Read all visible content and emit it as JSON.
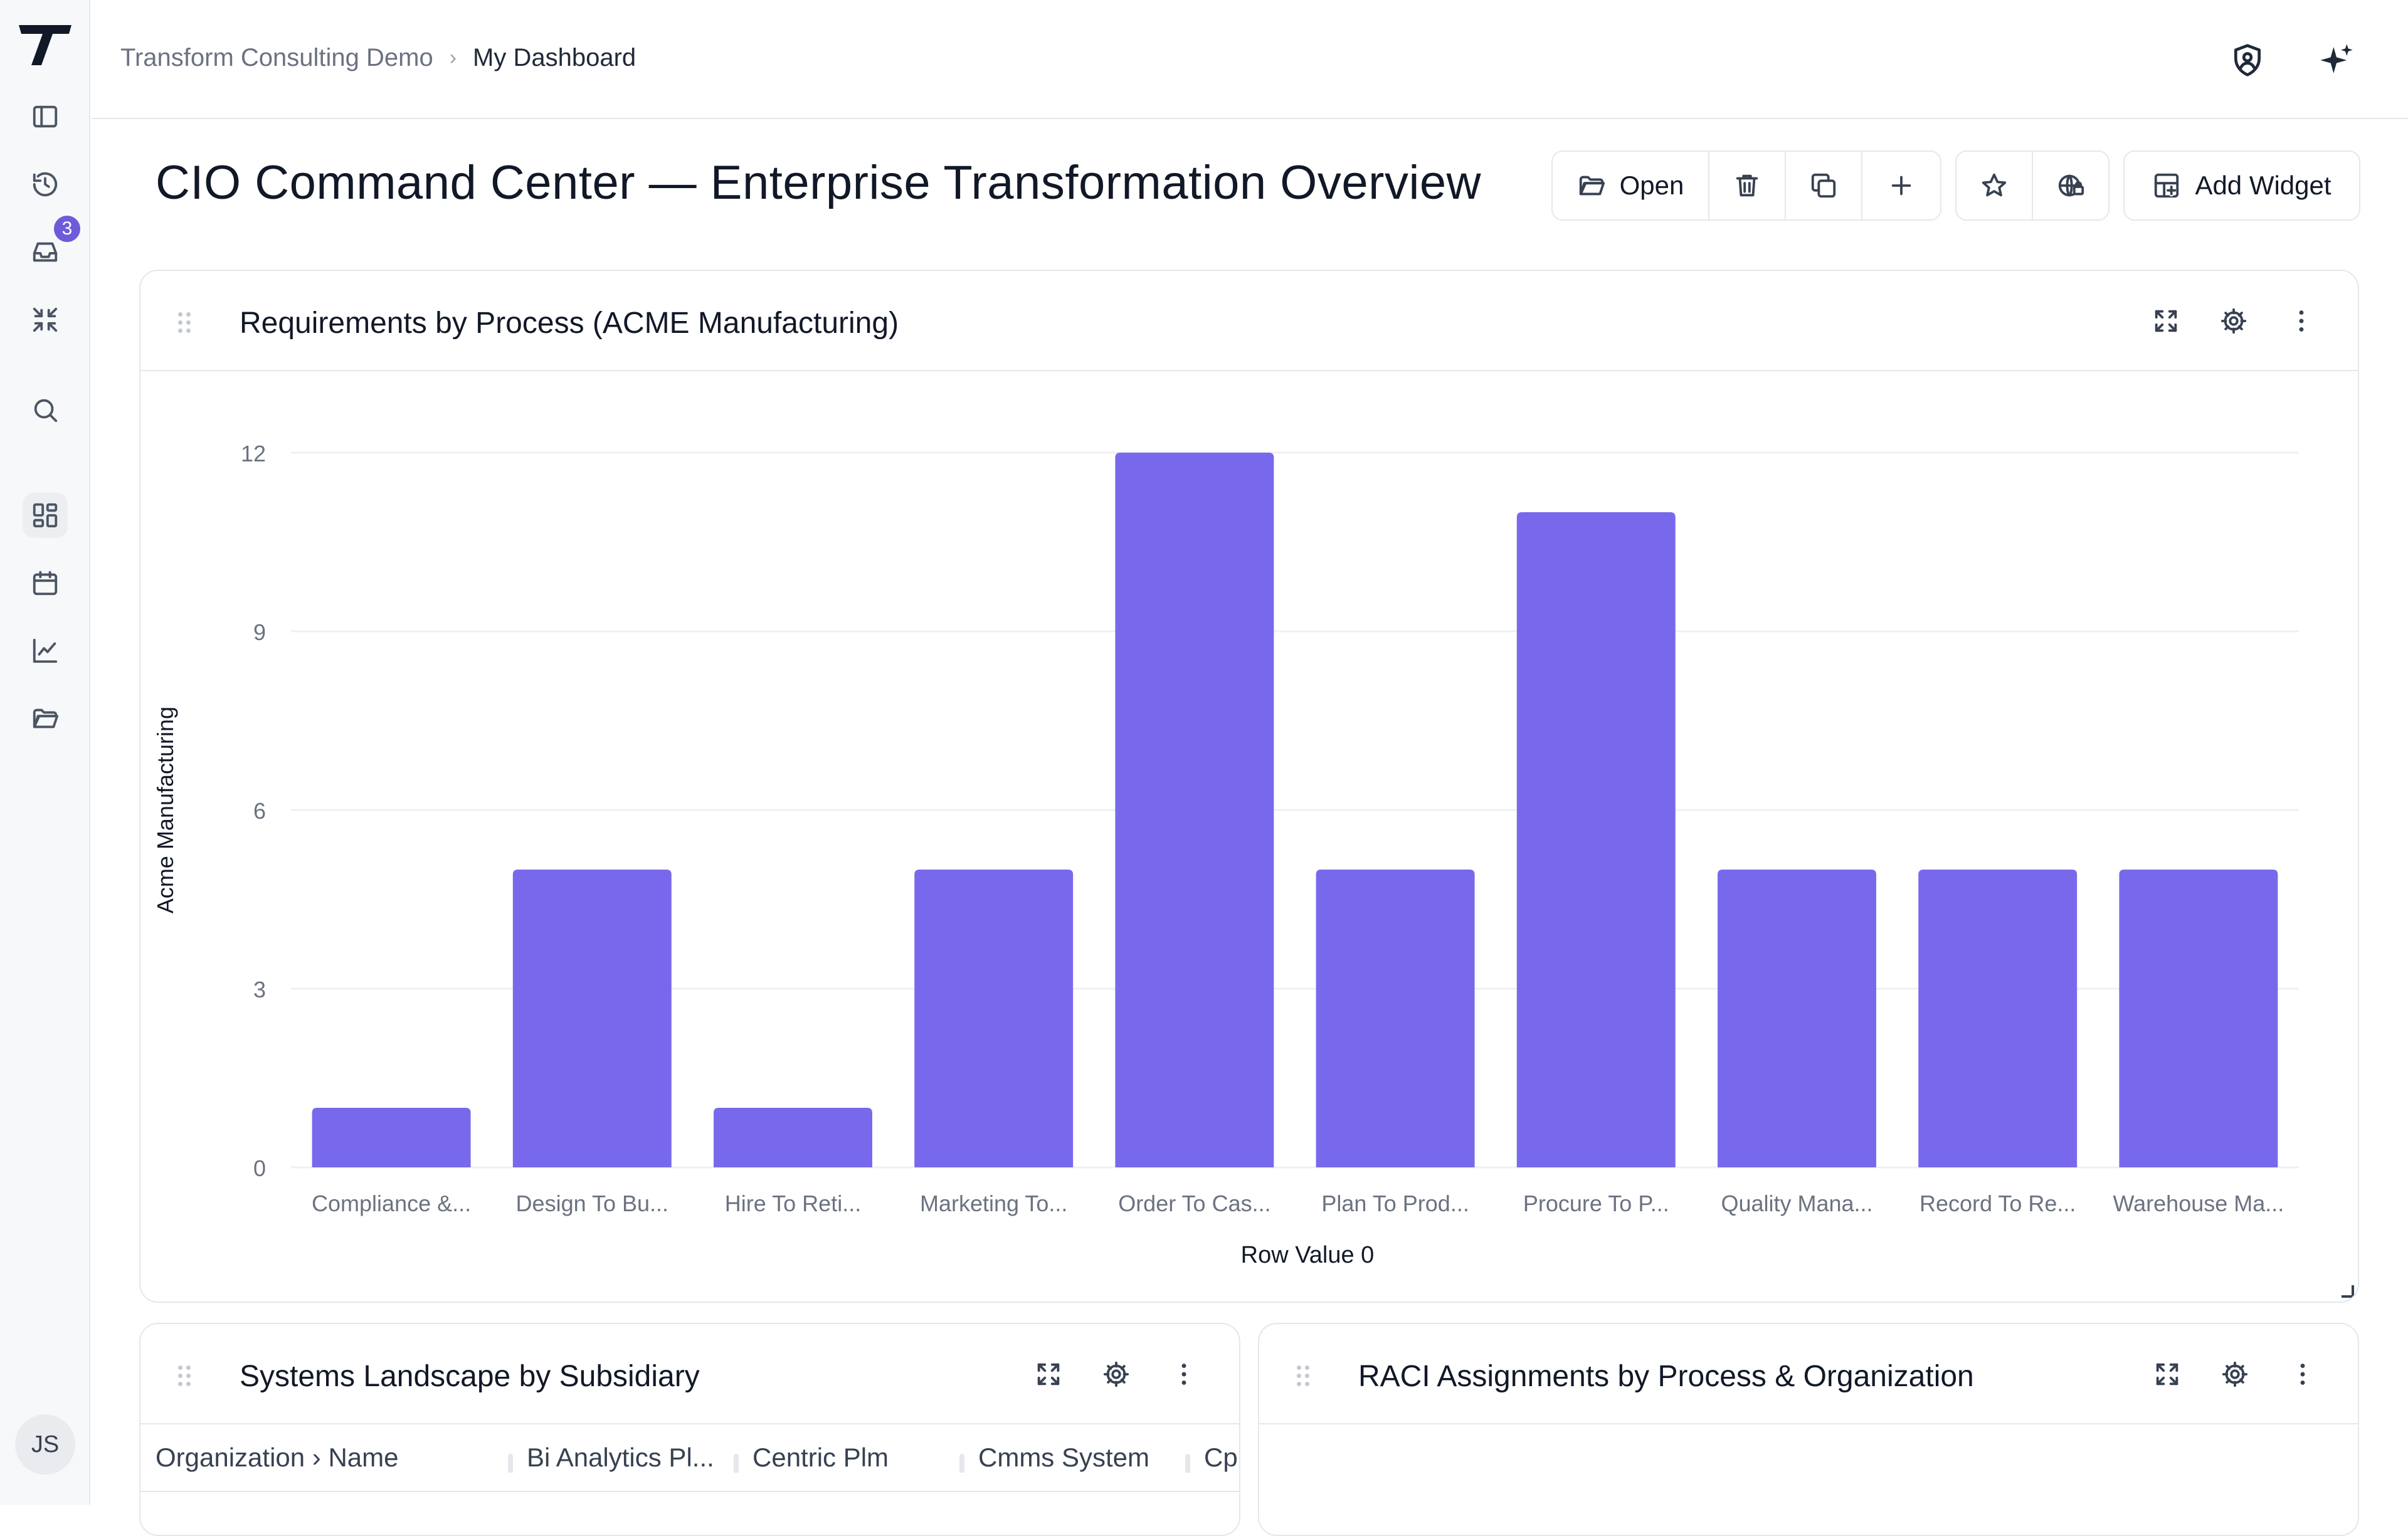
{
  "breadcrumb": {
    "org": "Transform Consulting Demo",
    "page": "My Dashboard"
  },
  "rail": {
    "notification_count": "3",
    "user_initials": "JS"
  },
  "page": {
    "title": "CIO Command Center — Enterprise Transformation Overview"
  },
  "toolbar": {
    "open_label": "Open",
    "add_widget_label": "Add Widget"
  },
  "widgets": {
    "requirements": {
      "title": "Requirements by Process (ACME Manufacturing)"
    },
    "systems": {
      "title": "Systems Landscape by Subsidiary",
      "columns": [
        "Organization › Name",
        "Bi Analytics Pl...",
        "Centric Plm",
        "Cmms System",
        "Cp"
      ]
    },
    "raci": {
      "title": "RACI Assignments by Process & Organization"
    }
  },
  "chart_data": {
    "type": "bar",
    "title": "Requirements by Process (ACME Manufacturing)",
    "xlabel": "Row Value 0",
    "ylabel": "Acme Manufacturing",
    "ylim": [
      0,
      12
    ],
    "yticks": [
      0,
      3,
      6,
      9,
      12
    ],
    "grid": true,
    "categories": [
      "Compliance &...",
      "Design To Bu...",
      "Hire To Reti...",
      "Marketing To...",
      "Order To Cas...",
      "Plan To Prod...",
      "Procure To P...",
      "Quality Mana...",
      "Record To Re...",
      "Warehouse Ma..."
    ],
    "values": [
      1,
      5,
      1,
      5,
      12,
      5,
      11,
      5,
      5,
      5
    ],
    "bar_color": "#7869ec"
  },
  "colors": {
    "accent": "#6d5bd9",
    "bar": "#7869ec",
    "border": "#e5e7eb"
  }
}
